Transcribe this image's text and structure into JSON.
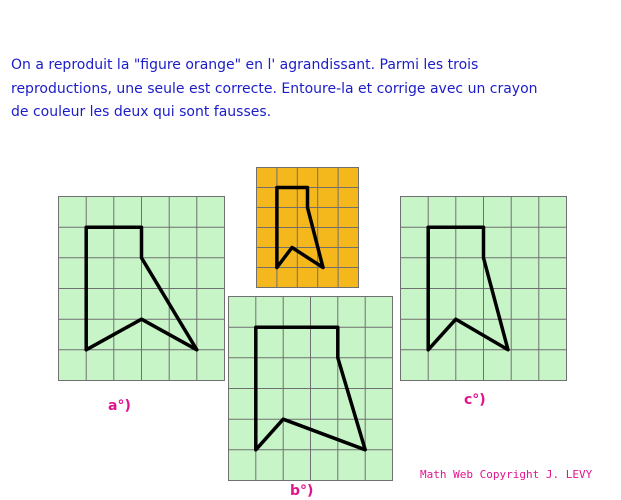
{
  "instructions": {
    "line1": "On a reproduit la \"figure orange\" en l' agrandissant. Parmi les trois",
    "line2": "reproductions, une seule est correcte. Entoure-la et corrige avec un crayon",
    "line3": "de couleur les deux qui sont fausses."
  },
  "colors": {
    "text": "#1c1cc8",
    "label": "#e0148c",
    "orange_fill": "#f5b81c",
    "green_fill": "#c8f5c8",
    "grid_line": "#707070",
    "shape_line": "#000000"
  },
  "figures": {
    "orange": {
      "cols": 5,
      "rows": 6
    },
    "a": {
      "label": "a°)",
      "cols": 6,
      "rows": 6
    },
    "b": {
      "label": "b°)",
      "cols": 6,
      "rows": 6
    },
    "c": {
      "label": "c°)",
      "cols": 6,
      "rows": 6
    }
  },
  "copyright": "Math Web Copyright J. LEVY"
}
